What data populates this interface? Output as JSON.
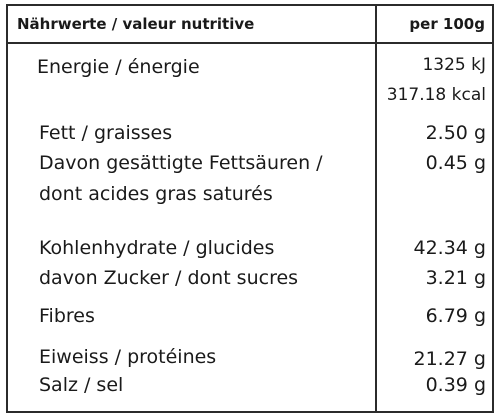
{
  "header": {
    "label": "Nährwerte / valeur nutritive",
    "per": "per 100g"
  },
  "rows": [
    {
      "label": "Energie / énergie",
      "value": "1325 kJ"
    },
    {
      "label": "",
      "value": "317.18 kcal"
    },
    {
      "label": "Fett / graisses",
      "value": "2.50 g"
    },
    {
      "label": "Davon gesättigte Fettsäuren /",
      "value": "0.45 g"
    },
    {
      "label": "dont acides gras saturés",
      "value": ""
    },
    {
      "label": "Kohlenhydrate / glucides",
      "value": "42.34 g"
    },
    {
      "label": "davon Zucker / dont sucres",
      "value": "3.21 g"
    },
    {
      "label": "Fibres",
      "value": "6.79 g"
    },
    {
      "label": "Eiweiss / protéines",
      "value": "21.27 g"
    },
    {
      "label": "Salz / sel",
      "value": "0.39 g"
    }
  ]
}
